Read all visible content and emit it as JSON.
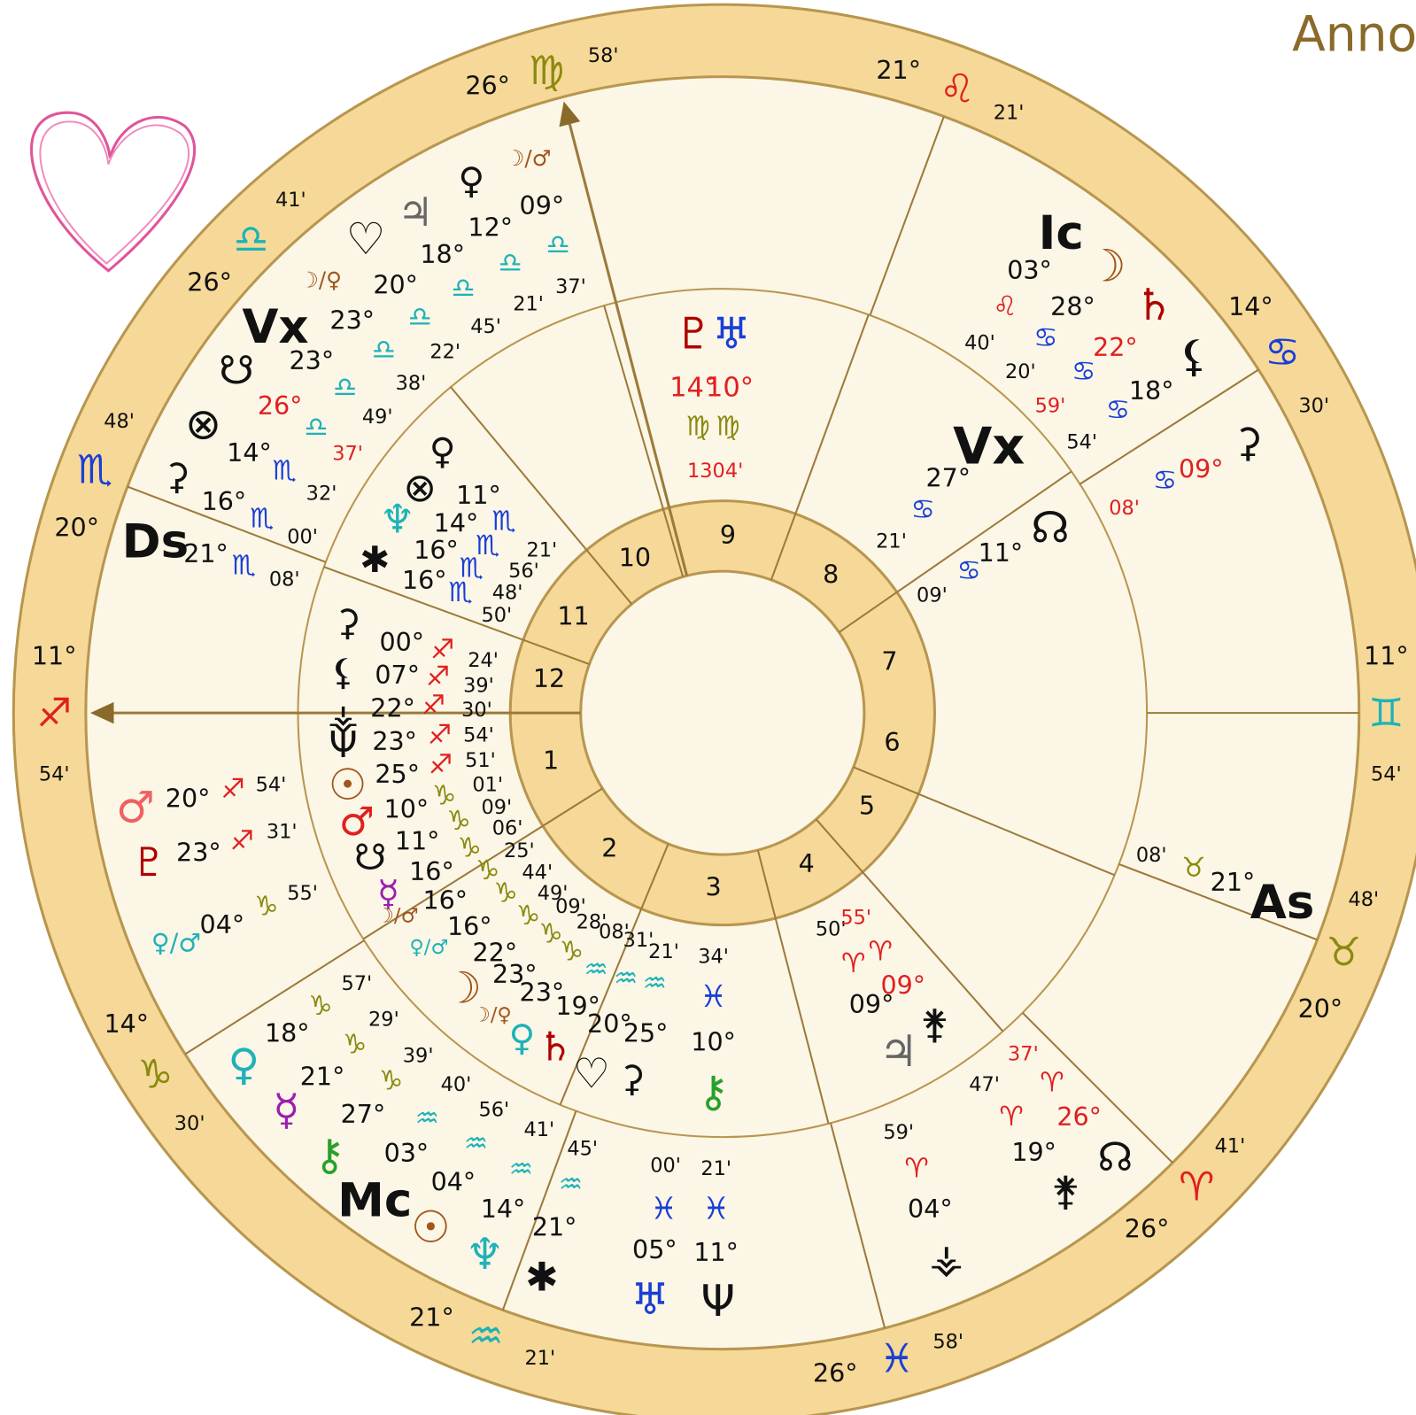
{
  "title": "Anno",
  "houses": [
    "1",
    "2",
    "3",
    "4",
    "5",
    "6",
    "7",
    "8",
    "9",
    "10",
    "11",
    "12"
  ],
  "ring": [
    "26°",
    "♍",
    "58'",
    "21°",
    "♌",
    "21'",
    "14°",
    "♋",
    "30'",
    "11°",
    "♊",
    "54'",
    "48'",
    "♉",
    "20°",
    "41'",
    "♈",
    "26°",
    "58'",
    "♓",
    "26°",
    "21°",
    "♒",
    "21'",
    "14°",
    "♑",
    "30'",
    "11°",
    "♐",
    "54'",
    "48'",
    "♏",
    "20°",
    "41'",
    "♎",
    "26°"
  ],
  "labels": [
    "☽/♂",
    "09°",
    "♀",
    "♃",
    "12°",
    "♎",
    "♡",
    "18°",
    "♎",
    "37'",
    "☽/♀",
    "20°",
    "♎",
    "21'",
    "Vx",
    "23°",
    "♎",
    "45'",
    "☋",
    "23°",
    "♎",
    "22'",
    "26°",
    "♎",
    "38'",
    "♎",
    "49'",
    "37'",
    "⊗",
    "14°",
    "♏",
    "32'",
    "⚳",
    "16°",
    "♏",
    "00'",
    "Ds",
    "21°",
    "♏",
    "08'",
    "♀",
    "⊗",
    "11°",
    "♆",
    "14°",
    "♏",
    "21'",
    "✱",
    "16°",
    "♏",
    "56'",
    "16°",
    "♏",
    "48'",
    "♏",
    "50'",
    "⚳",
    "00°",
    "♐",
    "24'",
    "⚸",
    "07°",
    "♐",
    "39'",
    "⚶",
    "22°",
    "♐",
    "30'",
    "Ψ",
    "23°",
    "♐",
    "54'",
    "☉",
    "25°",
    "♐",
    "51'",
    "♂",
    "10°",
    "♑",
    "01'",
    "☋",
    "11°",
    "♑",
    "09'",
    "☿",
    "16°",
    "♑",
    "06'",
    "16°",
    "♑",
    "25'",
    "☽/♂",
    "16°",
    "♑",
    "44'",
    "♀/♂",
    "22°",
    "♑",
    "49'",
    "23°",
    "♑",
    "09'",
    "☽",
    "23°",
    "♑",
    "28'",
    "☽/♀",
    "♒",
    "08'",
    "♀",
    "19°",
    "♒",
    "31'",
    "♄",
    "20°",
    "♒",
    "21'",
    "♡",
    "25°",
    "⚳",
    "34'",
    "♓",
    "10°",
    "⚷",
    "♂",
    "20°",
    "♐",
    "54'",
    "♇",
    "23°",
    "♐",
    "31'",
    "♀/♂",
    "04°",
    "♑",
    "55'",
    "57'",
    "♑",
    "18°",
    "♀",
    "29'",
    "♑",
    "21°",
    "☿",
    "39'",
    "♑",
    "27°",
    "⚷",
    "40'",
    "♒",
    "03°",
    "Mc",
    "56'",
    "♒",
    "04°",
    "☉",
    "41'",
    "♒",
    "14°",
    "♆",
    "45'",
    "♒",
    "21°",
    "✱",
    "00'",
    "♓",
    "05°",
    "♅",
    "21'",
    "♓",
    "11°",
    "Ψ",
    "50'",
    "55'",
    "♈",
    "♈",
    "09°",
    "09°",
    "⚵",
    "♃",
    "37'",
    "♈",
    "47'",
    "♈",
    "26°",
    "19°",
    "☊",
    "⚵",
    "59'",
    "♈",
    "04°",
    "⚶",
    "08'",
    "♉",
    "21°",
    "As",
    "Ic",
    "☽",
    "03°",
    "♌",
    "28°",
    "♄",
    "40'",
    "♋",
    "22°",
    "⚸",
    "20'",
    "♋",
    "18°",
    "59'",
    "♋",
    "⚳",
    "54'",
    "♋",
    "09°",
    "08'",
    "Vx",
    "27°",
    "♋",
    "21'",
    "☊",
    "11°",
    "♋",
    "09'",
    "♇",
    "♅",
    "14°",
    "10°",
    "♍",
    "♍",
    "1304'"
  ]
}
